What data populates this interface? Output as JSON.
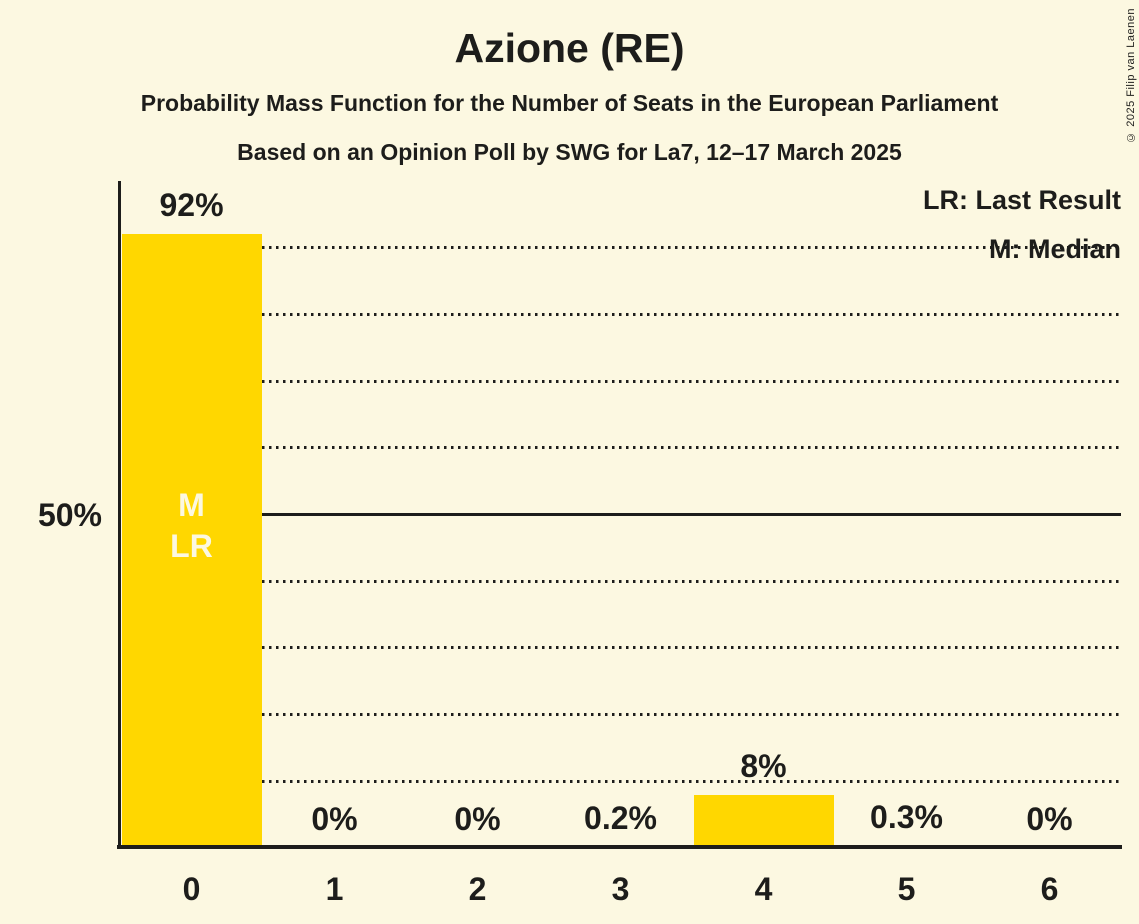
{
  "header": {
    "title": "Azione (RE)",
    "subtitle": "Probability Mass Function for the Number of Seats in the European Parliament",
    "poll_line": "Based on an Opinion Poll by SWG for La7, 12–17 March 2025",
    "copyright": "© 2025 Filip van Laenen"
  },
  "legend": {
    "lr": "LR: Last Result",
    "m": "M: Median"
  },
  "y_axis": {
    "tick_label": "50%"
  },
  "chart_data": {
    "type": "bar",
    "title": "Azione (RE)",
    "subtitle": "Probability Mass Function for the Number of Seats in the European Parliament",
    "source_line": "Based on an Opinion Poll by SWG for La7, 12–17 March 2025",
    "xlabel": "",
    "ylabel": "",
    "categories": [
      "0",
      "1",
      "2",
      "3",
      "4",
      "5",
      "6"
    ],
    "values": [
      92,
      0,
      0,
      0.2,
      8,
      0.3,
      0
    ],
    "value_labels": [
      "92%",
      "0%",
      "0%",
      "0.2%",
      "8%",
      "0.3%",
      "0%"
    ],
    "ylim": [
      0,
      100
    ],
    "y_tick_labeled": {
      "percent": 50,
      "label": "50%"
    },
    "gridlines_percent": [
      10,
      20,
      30,
      40,
      50,
      60,
      70,
      80,
      90
    ],
    "solid_gridline_percent": 50,
    "grid_on": true,
    "legend_entries": [
      "LR: Last Result",
      "M: Median"
    ],
    "legend_position": "top-right",
    "median_seats": 0,
    "last_result_seats": 0,
    "bar_annotations": {
      "0": [
        "M",
        "LR"
      ]
    },
    "colors": {
      "bar": "#FFD700",
      "background": "#FCF8E1",
      "text": "#1D1D1B",
      "bar_annotation_text": "#FCF8E1"
    }
  }
}
